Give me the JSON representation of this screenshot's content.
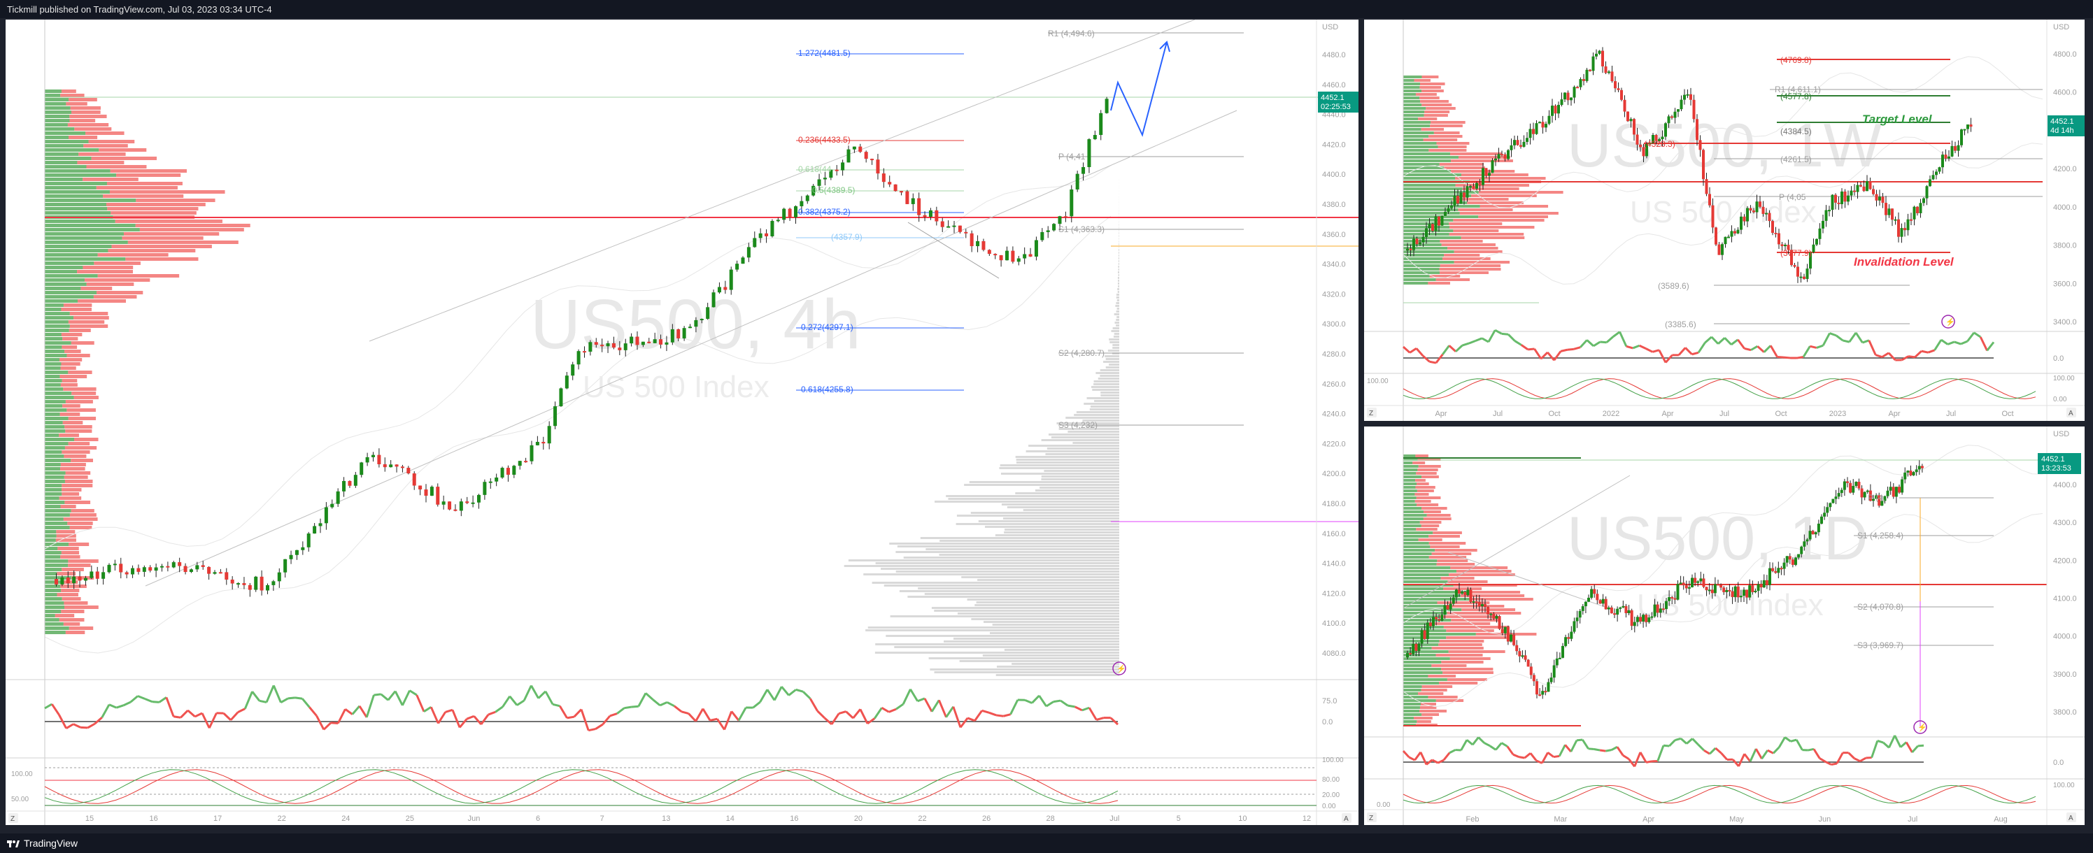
{
  "header": {
    "publish_line": "Tickmill published on TradingView.com, Jul 03, 2023 03:34 UTC-4"
  },
  "footer": {
    "brand": "TradingView"
  },
  "colors": {
    "up": "#1b8a1b",
    "down": "#e53935",
    "accent_red": "#f23645",
    "target_green": "#2e9a3e",
    "blue": "#2962ff"
  },
  "pane_4h": {
    "watermark_symbol": "US500, 4h",
    "watermark_name": "US 500 Index",
    "currency": "USD",
    "price_tag": "4452.1",
    "countdown": "02:25:53",
    "levels": {
      "r1": "R1 (4,494.6)",
      "fib_1272": "1.272(4481.5)",
      "fib_0236": "0.236(4433.5)",
      "pivot": "P (4,41",
      "fib_0618": "0.618(44",
      "fib_05": "0.5(4389.5)",
      "fib_0382": "0.382(4375.2)",
      "s1": "S1 (4,363.3)",
      "fib_0786": "(4357.9)",
      "fib_m0272": "-0.272(4297.1)",
      "s2": "S2 (4,280.7)",
      "fib_m0618": "-0.618(4255.8)",
      "s3": "S3 (4,232)"
    },
    "price_axis": [
      "4480.0",
      "4460.0",
      "4440.0",
      "4420.0",
      "4400.0",
      "4380.0",
      "4360.0",
      "4340.0",
      "4320.0",
      "4300.0",
      "4280.0",
      "4260.0",
      "4240.0",
      "4220.0",
      "4200.0",
      "4180.0",
      "4160.0",
      "4140.0",
      "4120.0",
      "4100.0",
      "4080.0"
    ],
    "time_axis": [
      "15",
      "16",
      "17",
      "22",
      "24",
      "25",
      "Jun",
      "6",
      "7",
      "13",
      "14",
      "16",
      "20",
      "22",
      "26",
      "28",
      "Jul",
      "5",
      "10",
      "12"
    ],
    "rsi_axis": [
      "75.0",
      "0.0"
    ],
    "stoch_axis": [
      "100.00",
      "80.00",
      "20.00",
      "0.00"
    ],
    "zoom_btn": "Z",
    "auto_btn": "A"
  },
  "pane_1w": {
    "watermark_symbol": "US500, 1W",
    "watermark_name": "US 500 Index",
    "currency": "USD",
    "price_tag": "4452.1",
    "countdown": "4d 14h",
    "target_label": "Target Level",
    "invalidation_label": "Invalidation Level",
    "levels": {
      "l4769": "(4769.8)",
      "r1": "R1 (4,611.1)",
      "l4577": "(4577.8)",
      "l4384": "(4384.5)",
      "l4328": "(4328.3)",
      "l4261": "(4261.5)",
      "pivot": "P (4,05",
      "l3777": "(3777.9)",
      "l3589": "(3589.6)",
      "l3385": "(3385.6)"
    },
    "price_axis": [
      "4800.0",
      "4600.0",
      "4400.0",
      "4200.0",
      "4000.0",
      "3800.0",
      "3600.0",
      "3400.0"
    ],
    "time_axis": [
      "Apr",
      "Jul",
      "Oct",
      "2022",
      "Apr",
      "Jul",
      "Oct",
      "2023",
      "Apr",
      "Jul",
      "Oct"
    ],
    "rsi_axis": [
      "0.0"
    ],
    "stoch_axis": [
      "100.00",
      "100.00",
      "0.00"
    ],
    "zoom_btn": "Z",
    "auto_btn": "A"
  },
  "pane_1d": {
    "watermark_symbol": "US500, 1D",
    "watermark_name": "US 500 Index",
    "currency": "USD",
    "price_tag": "4452.1",
    "countdown": "13:23:53",
    "levels": {
      "pivot": "P (4,",
      "s1": "S1 (4,258.4)",
      "s2": "S2 (4,070.8)",
      "s3": "S3 (3,969.7)"
    },
    "price_axis": [
      "4400.0",
      "4300.0",
      "4200.0",
      "4100.0",
      "4000.0",
      "3900.0",
      "3800.0"
    ],
    "time_axis": [
      "Feb",
      "Mar",
      "Apr",
      "May",
      "Jun",
      "Jul",
      "Aug"
    ],
    "rsi_axis": [
      "0.0"
    ],
    "stoch_axis": [
      "100.00",
      "0.00"
    ],
    "zoom_btn": "Z",
    "auto_btn": "A"
  }
}
